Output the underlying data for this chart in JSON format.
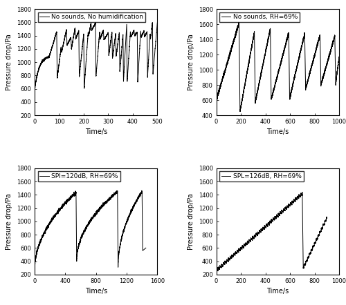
{
  "subplots": [
    {
      "label": "No sounds, No humidification",
      "xlim": [
        0,
        500
      ],
      "ylim": [
        200,
        1800
      ],
      "xticks": [
        0,
        100,
        200,
        300,
        400,
        500
      ],
      "yticks": [
        200,
        400,
        600,
        800,
        1000,
        1200,
        1400,
        1600,
        1800
      ],
      "xlabel": "Time/s",
      "ylabel": "Pressure drop/Pa"
    },
    {
      "label": "No sounds, RH=69%",
      "xlim": [
        0,
        1000
      ],
      "ylim": [
        400,
        1800
      ],
      "xticks": [
        0,
        200,
        400,
        600,
        800,
        1000
      ],
      "yticks": [
        400,
        600,
        800,
        1000,
        1200,
        1400,
        1600,
        1800
      ],
      "xlabel": "Time/s",
      "ylabel": "Pressure drop/Pa"
    },
    {
      "label": "SPI=120dB, RH=69%",
      "xlim": [
        0,
        1600
      ],
      "ylim": [
        200,
        1800
      ],
      "xticks": [
        0,
        400,
        800,
        1200,
        1600
      ],
      "yticks": [
        200,
        400,
        600,
        800,
        1000,
        1200,
        1400,
        1600,
        1800
      ],
      "xlabel": "Time/s",
      "ylabel": "Pressure drop/Pa"
    },
    {
      "label": "SPL=126dB, RH=69%",
      "xlim": [
        0,
        1000
      ],
      "ylim": [
        200,
        1800
      ],
      "xticks": [
        0,
        200,
        400,
        600,
        800,
        1000
      ],
      "yticks": [
        200,
        400,
        600,
        800,
        1000,
        1200,
        1400,
        1600,
        1800
      ],
      "xlabel": "Time/s",
      "ylabel": "Pressure drop/Pa"
    }
  ],
  "line_color": "#000000",
  "line_width": 0.7,
  "font_size": 7,
  "legend_font_size": 6.5
}
